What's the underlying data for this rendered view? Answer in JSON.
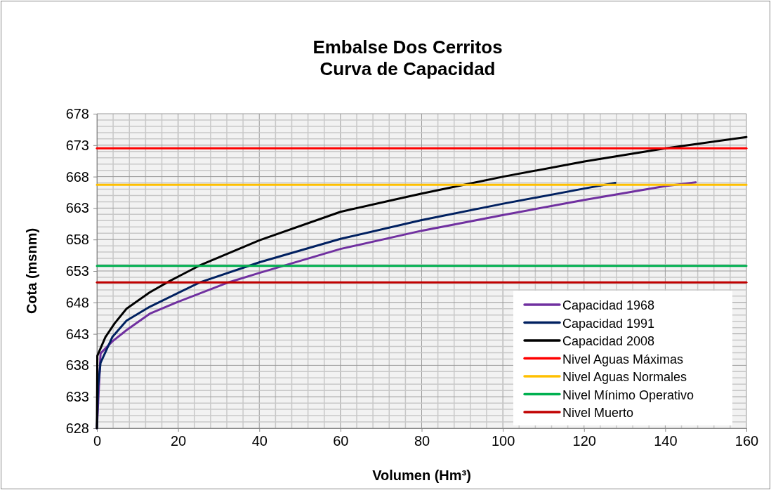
{
  "chart_data": {
    "type": "line",
    "title": "Embalse Dos Cerritos\nCurva de Capacidad",
    "xlabel": "Volumen (Hm³)",
    "ylabel": "Cota (msnm)",
    "xlim": [
      0,
      160
    ],
    "ylim": [
      628,
      678
    ],
    "xticks": [
      0,
      20,
      40,
      60,
      80,
      100,
      120,
      140,
      160
    ],
    "yticks": [
      628,
      633,
      638,
      643,
      648,
      653,
      658,
      663,
      668,
      673,
      678
    ],
    "grid": true,
    "legend": "bottom right",
    "marker": "none",
    "line_style": "solid",
    "series": [
      {
        "name": "Capacidad 1968",
        "color": "#7030a0",
        "x": [
          0,
          0.9,
          3.8,
          7.3,
          13,
          20,
          32,
          40.1,
          60,
          80,
          100.1,
          120.1,
          140.1,
          147.5
        ],
        "values": [
          628,
          639.9,
          641.8,
          643.6,
          646.2,
          648.1,
          651.1,
          652.7,
          656.5,
          659.4,
          661.9,
          664.3,
          666.5,
          667.1
        ]
      },
      {
        "name": "Capacidad 1991",
        "color": "#002060",
        "x": [
          0,
          0.3,
          0.9,
          3.8,
          7.3,
          13,
          25.4,
          40.1,
          60,
          80,
          100.1,
          120,
          127.7
        ],
        "values": [
          628,
          634.7,
          638.4,
          642.5,
          645.1,
          647.3,
          651.2,
          654.4,
          658.1,
          661.1,
          663.7,
          666.1,
          667
        ]
      },
      {
        "name": "Capacidad 2008",
        "color": "#000000",
        "x": [
          0,
          0.1,
          2.1,
          4.4,
          7.3,
          13,
          17.9,
          25.7,
          40.1,
          60,
          73,
          80,
          100.1,
          120.1,
          140.1,
          160
        ],
        "values": [
          628,
          639.5,
          642.5,
          644.7,
          647,
          649.6,
          651.4,
          654,
          657.9,
          662.4,
          664.3,
          665.3,
          668,
          670.4,
          672.5,
          674.3
        ]
      },
      {
        "name": "Nivel Aguas Máximas",
        "color": "#ff0000",
        "x": [
          0,
          160
        ],
        "values": [
          672.5,
          672.5
        ]
      },
      {
        "name": "Nivel Aguas Normales",
        "color": "#ffc000",
        "x": [
          0,
          160
        ],
        "values": [
          666.7,
          666.7
        ]
      },
      {
        "name": "Nivel Mínimo Operativo",
        "color": "#00b050",
        "x": [
          0,
          160
        ],
        "values": [
          653.8,
          653.8
        ]
      },
      {
        "name": "Nivel Muerto",
        "color": "#c00000",
        "x": [
          0,
          160
        ],
        "values": [
          651.2,
          651.2
        ]
      }
    ]
  }
}
